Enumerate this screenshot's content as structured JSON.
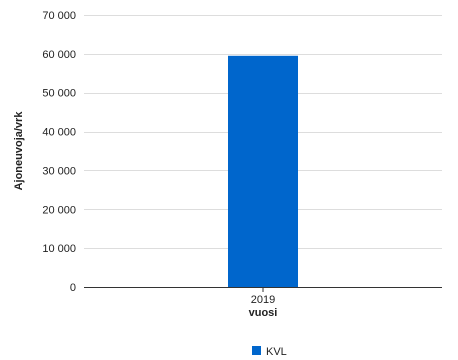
{
  "chart_data": {
    "type": "bar",
    "categories": [
      "2019"
    ],
    "series": [
      {
        "name": "KVL",
        "values": [
          59500
        ],
        "color": "#0066cc"
      }
    ],
    "xlabel": "vuosi",
    "ylabel": "Ajoneuvoja/vrk",
    "ylim": [
      0,
      70000
    ],
    "yticks": [
      0,
      10000,
      20000,
      30000,
      40000,
      50000,
      60000,
      70000
    ],
    "ytick_labels": [
      "0",
      "10 000",
      "20 000",
      "30 000",
      "40 000",
      "50 000",
      "60 000",
      "70 000"
    ],
    "grid": true,
    "legend_position": "bottom"
  }
}
